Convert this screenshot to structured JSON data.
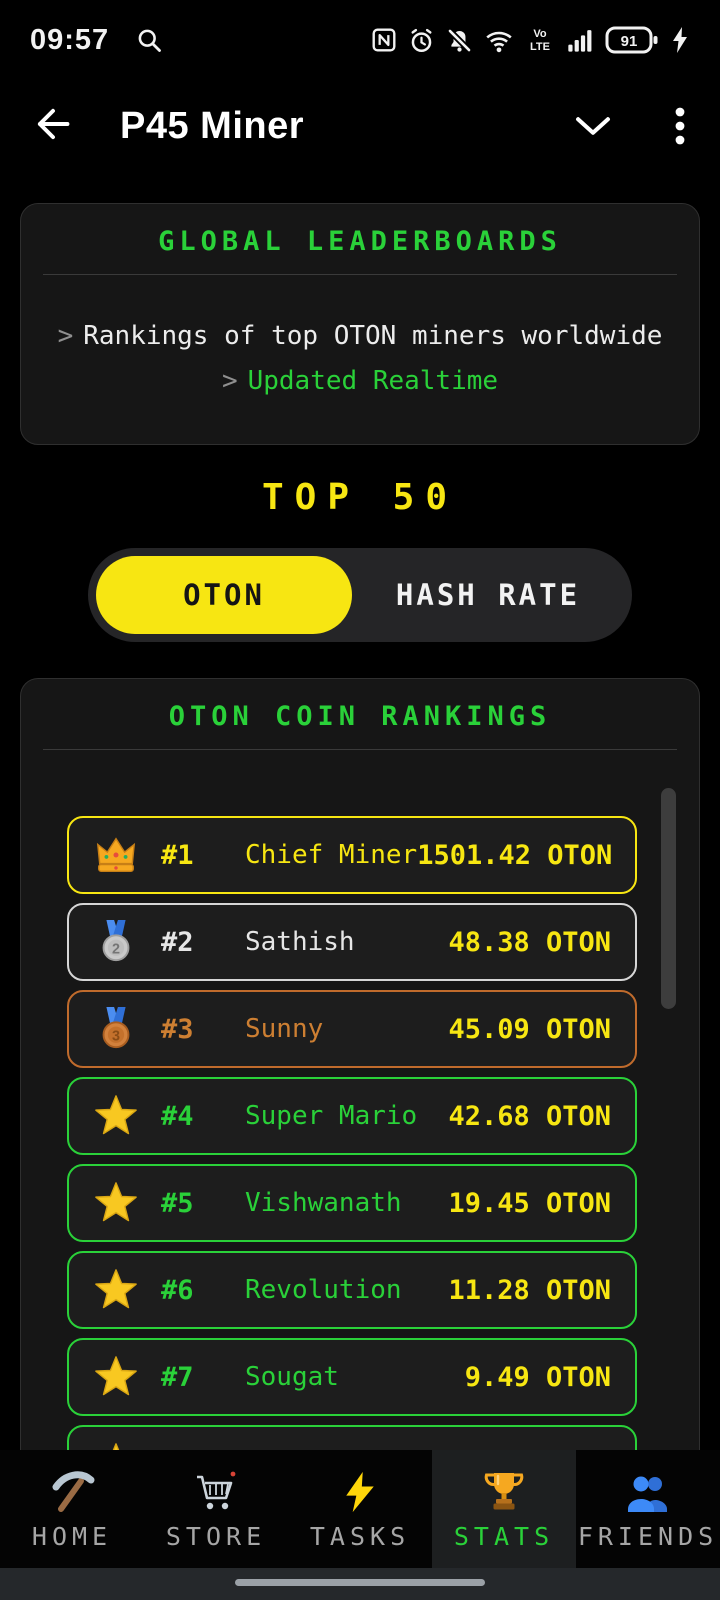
{
  "status_bar": {
    "time": "09:57",
    "battery_percent": "91",
    "right_icons": [
      "nfc",
      "alarm",
      "notifications-off",
      "wifi",
      "volte",
      "signal",
      "battery",
      "charging"
    ]
  },
  "header": {
    "title": "P45 Miner"
  },
  "intro_card": {
    "title": "GLOBAL LEADERBOARDS",
    "line1_prefix": ">",
    "line1": "Rankings of top OTON miners worldwide",
    "line2_prefix": ">",
    "line2": "Updated Realtime"
  },
  "top_heading": "TOP 50",
  "toggle": {
    "active_label": "OTON",
    "inactive_label": "HASH RATE"
  },
  "rankings_card": {
    "title": "OTON COIN RANKINGS",
    "rows": [
      {
        "icon": "crown",
        "rank": "#1",
        "name": "Chief Miner",
        "value": "1501.42 OTON",
        "tier": "gold"
      },
      {
        "icon": "medal-2",
        "rank": "#2",
        "name": "Sathish",
        "value": "48.38 OTON",
        "tier": "silver"
      },
      {
        "icon": "medal-3",
        "rank": "#3",
        "name": "Sunny",
        "value": "45.09 OTON",
        "tier": "bronze"
      },
      {
        "icon": "star",
        "rank": "#4",
        "name": "Super Mario",
        "value": "42.68 OTON",
        "tier": "green"
      },
      {
        "icon": "star",
        "rank": "#5",
        "name": "Vishwanath",
        "value": "19.45 OTON",
        "tier": "green"
      },
      {
        "icon": "star",
        "rank": "#6",
        "name": "Revolution",
        "value": "11.28 OTON",
        "tier": "green"
      },
      {
        "icon": "star",
        "rank": "#7",
        "name": "Sougat",
        "value": "9.49 OTON",
        "tier": "green"
      },
      {
        "icon": "star",
        "rank": "",
        "name": "",
        "value": "",
        "tier": "green"
      }
    ]
  },
  "bottom_nav": {
    "items": [
      {
        "label": "HOME",
        "icon": "pickaxe",
        "active": false
      },
      {
        "label": "STORE",
        "icon": "cart",
        "active": false
      },
      {
        "label": "TASKS",
        "icon": "bolt",
        "active": false
      },
      {
        "label": "STATS",
        "icon": "trophy",
        "active": true
      },
      {
        "label": "FRIENDS",
        "icon": "friends",
        "active": false
      }
    ]
  },
  "colors": {
    "accent_green": "#2ad139",
    "accent_yellow": "#f7e612",
    "silver": "#d6d6d6",
    "bronze": "#cd7f32",
    "background": "#000000",
    "card_background": "#161616"
  }
}
